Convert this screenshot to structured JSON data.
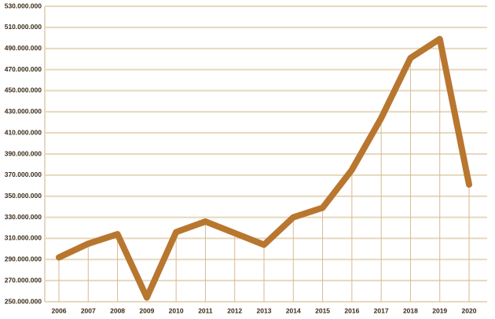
{
  "chart_data": {
    "type": "line",
    "categories": [
      "2006",
      "2007",
      "2008",
      "2009",
      "2010",
      "2011",
      "2012",
      "2013",
      "2014",
      "2015",
      "2016",
      "2017",
      "2018",
      "2019",
      "2020"
    ],
    "series": [
      {
        "color": "#b8762f",
        "values": [
          292000000,
          305000000,
          314000000,
          254000000,
          316000000,
          326000000,
          315000000,
          304000000,
          330000000,
          339000000,
          375000000,
          424000000,
          481000000,
          499000000,
          361000000
        ]
      }
    ],
    "ylim": [
      250000000,
      530000000
    ],
    "yticks": [
      {
        "value": 250000000,
        "label": "250.000.000"
      },
      {
        "value": 270000000,
        "label": "270.000.000"
      },
      {
        "value": 290000000,
        "label": "290.000.000"
      },
      {
        "value": 310000000,
        "label": "310.000.000"
      },
      {
        "value": 330000000,
        "label": "330.000.000"
      },
      {
        "value": 350000000,
        "label": "350.000.000"
      },
      {
        "value": 370000000,
        "label": "370.000.000"
      },
      {
        "value": 390000000,
        "label": "390.000.000"
      },
      {
        "value": 410000000,
        "label": "410.000.000"
      },
      {
        "value": 430000000,
        "label": "430.000.000"
      },
      {
        "value": 450000000,
        "label": "450.000.000"
      },
      {
        "value": 470000000,
        "label": "470.000.000"
      },
      {
        "value": 490000000,
        "label": "490.000.000"
      },
      {
        "value": 510000000,
        "label": "510.000.000"
      },
      {
        "value": 530000000,
        "label": "530.000.000"
      }
    ],
    "grid": true
  }
}
